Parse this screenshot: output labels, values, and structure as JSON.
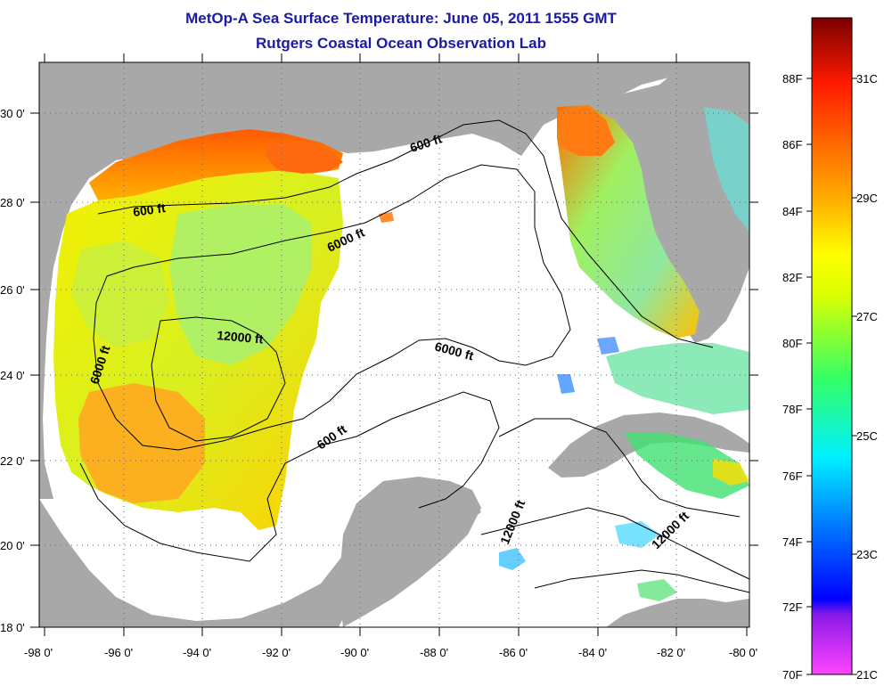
{
  "title": {
    "line1": "MetOp-A Sea Surface Temperature:  June 05, 2011 1555 GMT",
    "line2": "Rutgers Coastal Ocean Observation Lab"
  },
  "map": {
    "lon_ticks": [
      "-98 0'",
      "-96 0'",
      "-94 0'",
      "-92 0'",
      "-90 0'",
      "-88 0'",
      "-86 0'",
      "-84 0'",
      "-82 0'",
      "-80 0'"
    ],
    "lat_ticks": [
      "30 0'",
      "28 0'",
      "26 0'",
      "24 0'",
      "22 0'",
      "20 0'",
      "18 0'"
    ],
    "land_color": "#a8a8a8",
    "contour_labels": [
      "600 ft",
      "600 ft",
      "600 ft",
      "6000 ft",
      "6000 ft",
      "6000 ft",
      "12000 ft",
      "12000 ft",
      "12000 ft"
    ]
  },
  "colorbar": {
    "fahrenheit": [
      "88F",
      "86F",
      "84F",
      "82F",
      "80F",
      "78F",
      "76F",
      "74F",
      "72F",
      "70F"
    ],
    "celsius": [
      "31C",
      "29C",
      "27C",
      "25C",
      "23C",
      "21C"
    ],
    "colors": [
      "#7a0000",
      "#ff1a00",
      "#ff8c00",
      "#ffd700",
      "#ffff00",
      "#9aff00",
      "#00ff66",
      "#00ffff",
      "#0066ff",
      "#0000ff",
      "#6a00c8",
      "#ff33ff"
    ]
  }
}
